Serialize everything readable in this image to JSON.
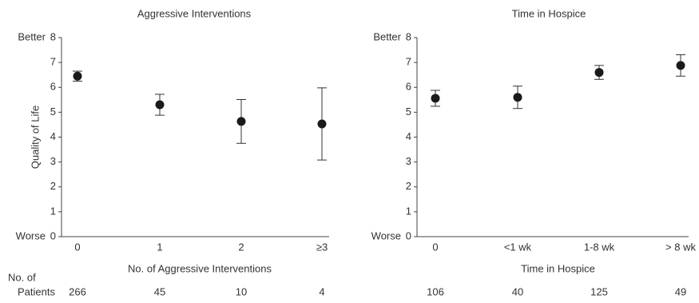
{
  "chart_data": [
    {
      "type": "errorbar",
      "title": "Aggressive Interventions",
      "ylabel": "Quality of Life",
      "xlabel": "No. of Aggressive Interventions",
      "ytop_label": "Better",
      "ybottom_label": "Worse",
      "categories": [
        "0",
        "1",
        "2",
        "≥3"
      ],
      "values": [
        6.45,
        5.3,
        4.63,
        4.53
      ],
      "errors": [
        0.2,
        0.42,
        0.88,
        1.45
      ],
      "ylim": [
        0,
        8
      ],
      "yticks": [
        0,
        1,
        2,
        3,
        4,
        5,
        6,
        7,
        8
      ],
      "color": "#1a1a1a",
      "patients_label": [
        "No. of",
        "Patients"
      ],
      "patients": [
        266,
        45,
        10,
        4
      ]
    },
    {
      "type": "errorbar",
      "title": "Time in Hospice",
      "xlabel": "Time in Hospice",
      "ytop_label": "Better",
      "ybottom_label": "Worse",
      "categories": [
        "0",
        "<1 wk",
        "1-8 wk",
        "> 8 wk"
      ],
      "values": [
        5.56,
        5.6,
        6.6,
        6.88
      ],
      "errors": [
        0.32,
        0.45,
        0.28,
        0.43
      ],
      "ylim": [
        0,
        8
      ],
      "yticks": [
        0,
        1,
        2,
        3,
        4,
        5,
        6,
        7,
        8
      ],
      "color": "#1a1a1a",
      "patients": [
        106,
        40,
        125,
        49
      ]
    }
  ]
}
